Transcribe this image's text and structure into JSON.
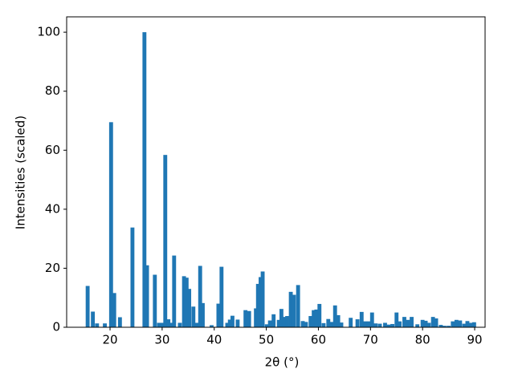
{
  "chart_data": {
    "type": "bar",
    "x_label": "2θ (°)",
    "y_label": "Intensities (scaled)",
    "color": "#1f77b4",
    "x": [
      15.7,
      16.7,
      17.5,
      19.0,
      20.2,
      20.8,
      21.9,
      24.3,
      26.6,
      27.1,
      28.6,
      29.4,
      30.0,
      30.6,
      31.2,
      31.8,
      32.3,
      33.4,
      34.2,
      34.7,
      35.2,
      36.0,
      36.6,
      37.3,
      37.8,
      39.5,
      40.8,
      41.4,
      42.5,
      43.0,
      43.5,
      44.5,
      46.0,
      46.7,
      48.0,
      48.4,
      48.9,
      49.3,
      50.1,
      50.7,
      51.4,
      52.4,
      52.9,
      53.5,
      54.0,
      54.7,
      55.3,
      56.1,
      57.0,
      57.6,
      58.5,
      59.1,
      59.6,
      60.2,
      61.0,
      61.9,
      62.6,
      63.2,
      63.8,
      64.4,
      66.2,
      67.5,
      68.3,
      69.0,
      69.7,
      70.3,
      71.0,
      71.8,
      72.8,
      73.5,
      74.2,
      75.0,
      75.6,
      76.5,
      77.2,
      77.9,
      79.0,
      80.0,
      80.6,
      81.2,
      82.0,
      82.6,
      83.5,
      84.2,
      85.0,
      85.8,
      86.5,
      87.2,
      88.0,
      88.6,
      89.2,
      89.9
    ],
    "values": [
      14.0,
      5.3,
      1.3,
      1.3,
      69.5,
      11.6,
      3.4,
      33.8,
      100,
      21,
      17.8,
      1.5,
      1.5,
      58.4,
      2.7,
      1.5,
      24.3,
      1.5,
      17.3,
      16.8,
      13,
      7,
      1.5,
      20.8,
      8.2,
      0.7,
      8.0,
      20.5,
      1.5,
      2.6,
      3.9,
      2.6,
      5.8,
      5.5,
      6.4,
      14.7,
      17,
      18.9,
      1,
      2.3,
      4.4,
      2.5,
      6.2,
      3.5,
      3.8,
      12,
      11,
      14.3,
      2.1,
      1.8,
      3.8,
      5.8,
      6,
      7.9,
      1.4,
      2.8,
      1.8,
      7.4,
      4.1,
      1.6,
      3.2,
      2.7,
      5.2,
      2,
      2,
      5,
      1.3,
      1.2,
      1.5,
      0.9,
      1.1,
      5.0,
      2,
      3.5,
      2.5,
      3.5,
      1,
      2.5,
      2.2,
      1.5,
      3.5,
      3,
      0.8,
      0.5,
      0.5,
      2,
      2.5,
      2.3,
      1.2,
      2.1,
      1.5,
      1.7
    ],
    "xlim": [
      11.67,
      92.0
    ],
    "ylim": [
      0,
      105.2
    ],
    "xticks": [
      20,
      30,
      40,
      50,
      60,
      70,
      80,
      90
    ],
    "yticks": [
      0,
      20,
      40,
      60,
      80,
      100
    ]
  }
}
